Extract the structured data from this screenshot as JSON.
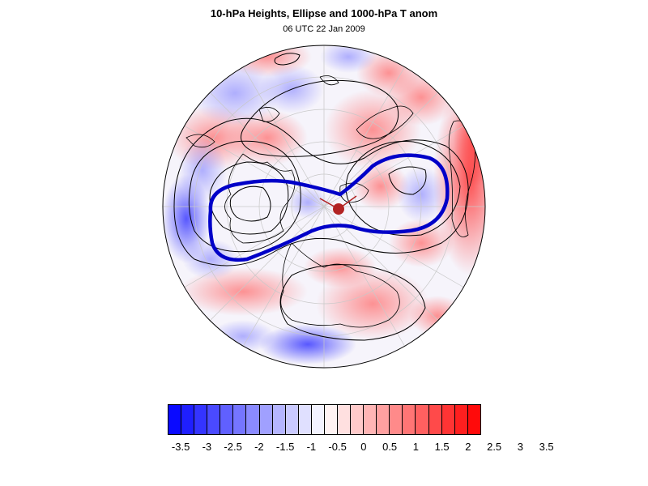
{
  "header": {
    "title": "10-hPa Heights, Ellipse and 1000-hPa T anom",
    "subtitle": "06 UTC 22 Jan 2009"
  },
  "colors": {
    "negative_extreme": "#0000ff",
    "neutral": "#ffffff",
    "positive_extreme": "#ff0000",
    "ellipse": "#0000c8",
    "contour": "#000000",
    "centroid_marker": "#b22222",
    "coastline": "#000000"
  },
  "colorbar": {
    "tick_labels": [
      "-3.5",
      "-3",
      "-2.5",
      "-2",
      "-1.5",
      "-1",
      "-0.5",
      "0",
      "0.5",
      "1",
      "1.5",
      "2",
      "2.5",
      "3",
      "3.5"
    ],
    "swatches": [
      "#0a0aff",
      "#1f1fff",
      "#3434ff",
      "#4a4aff",
      "#6060ff",
      "#7575ff",
      "#8a8aff",
      "#a0a0ff",
      "#b5b5ff",
      "#cacaff",
      "#e0e0ff",
      "#f3f3ff",
      "#fff3f3",
      "#ffe0e0",
      "#ffcaca",
      "#ffb5b5",
      "#ffa0a0",
      "#ff8a8a",
      "#ff7575",
      "#ff6060",
      "#ff4a4a",
      "#ff3434",
      "#ff1f1f",
      "#ff0a0a"
    ]
  },
  "map": {
    "projection": "north-polar-stereographic",
    "layers": [
      "1000-hPa temperature anomaly shading",
      "10-hPa geopotential height contours",
      "vortex ellipse",
      "vortex centroid marker",
      "coastlines",
      "lat-lon grid"
    ]
  }
}
